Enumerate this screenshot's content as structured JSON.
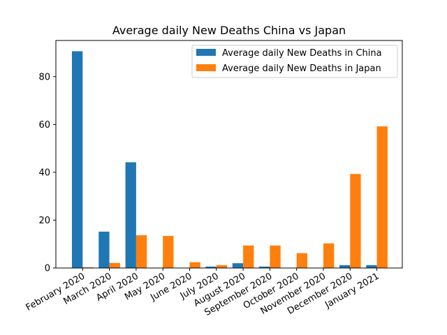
{
  "chart_data": {
    "type": "bar",
    "title": "Average daily New Deaths China vs Japan",
    "xlabel": "",
    "ylabel": "",
    "categories": [
      "February 2020",
      "March 2020",
      "April 2020",
      "May 2020",
      "June 2020",
      "July 2020",
      "August 2020",
      "September 2020",
      "October 2020",
      "November 2020",
      "December 2020",
      "January 2021"
    ],
    "series": [
      {
        "name": "Average daily New Deaths in China",
        "color": "#1f77b4",
        "values": [
          90.6,
          15.2,
          44.2,
          0.0,
          0.0,
          0.6,
          2.0,
          0.6,
          0.0,
          0.0,
          1.2,
          1.2
        ]
      },
      {
        "name": "Average daily New Deaths in Japan",
        "color": "#ff7f0e",
        "values": [
          0.3,
          2.1,
          13.7,
          13.4,
          2.4,
          1.2,
          9.4,
          9.4,
          6.2,
          10.3,
          39.3,
          59.2
        ]
      }
    ],
    "ylim": [
      0,
      95.1
    ],
    "yticks": [
      0,
      20,
      40,
      60,
      80
    ],
    "legend_position": "top-right",
    "grid": false
  }
}
